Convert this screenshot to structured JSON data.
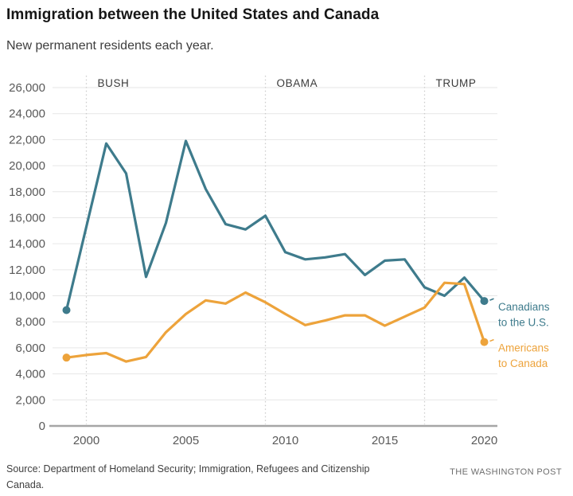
{
  "title": "Immigration between the United States and Canada",
  "subtitle": "New permanent residents each year.",
  "footer": {
    "source_line1": "Source: Department of Homeland Security; Immigration, Refugees and Citizenship",
    "source_line2": "Canada.",
    "credit": "THE WASHINGTON POST"
  },
  "chart_data": {
    "type": "line",
    "x": [
      1999,
      2000,
      2001,
      2002,
      2003,
      2004,
      2005,
      2006,
      2007,
      2008,
      2009,
      2010,
      2011,
      2012,
      2013,
      2014,
      2015,
      2016,
      2017,
      2018,
      2019,
      2020
    ],
    "series": [
      {
        "name": "Canadians to the U.S.",
        "label_lines": [
          "Canadians",
          "to the U.S."
        ],
        "color": "#3e7b8c",
        "values": [
          8900,
          15300,
          21700,
          19400,
          11450,
          15600,
          21900,
          18200,
          15500,
          15100,
          16150,
          13350,
          12800,
          12950,
          13200,
          11600,
          12700,
          12800,
          10650,
          10000,
          11400,
          9600
        ]
      },
      {
        "name": "Americans to Canada",
        "label_lines": [
          "Americans",
          "to Canada"
        ],
        "color": "#eda33b",
        "values": [
          5250,
          5450,
          5600,
          4950,
          5300,
          7200,
          8600,
          9650,
          9400,
          10250,
          9500,
          8600,
          7750,
          8100,
          8500,
          8500,
          7700,
          8400,
          9100,
          11000,
          10900,
          6450
        ]
      }
    ],
    "xlim": [
      1999,
      2020
    ],
    "ylim": [
      0,
      26000
    ],
    "ytick_step": 2000,
    "xticks": [
      2000,
      2005,
      2010,
      2015,
      2020
    ],
    "president_markers": [
      {
        "label": "BUSH",
        "year": 2000
      },
      {
        "label": "OBAMA",
        "year": 2009
      },
      {
        "label": "TRUMP",
        "year": 2017
      }
    ],
    "grid": true,
    "legend_position": "right-of-last-point",
    "colors": {
      "gridline": "#e6e6e6",
      "baseline": "#a6a6a6",
      "president_line": "#cccccc",
      "president_label": "#3a3a3a",
      "axis_label": "#595959"
    }
  }
}
